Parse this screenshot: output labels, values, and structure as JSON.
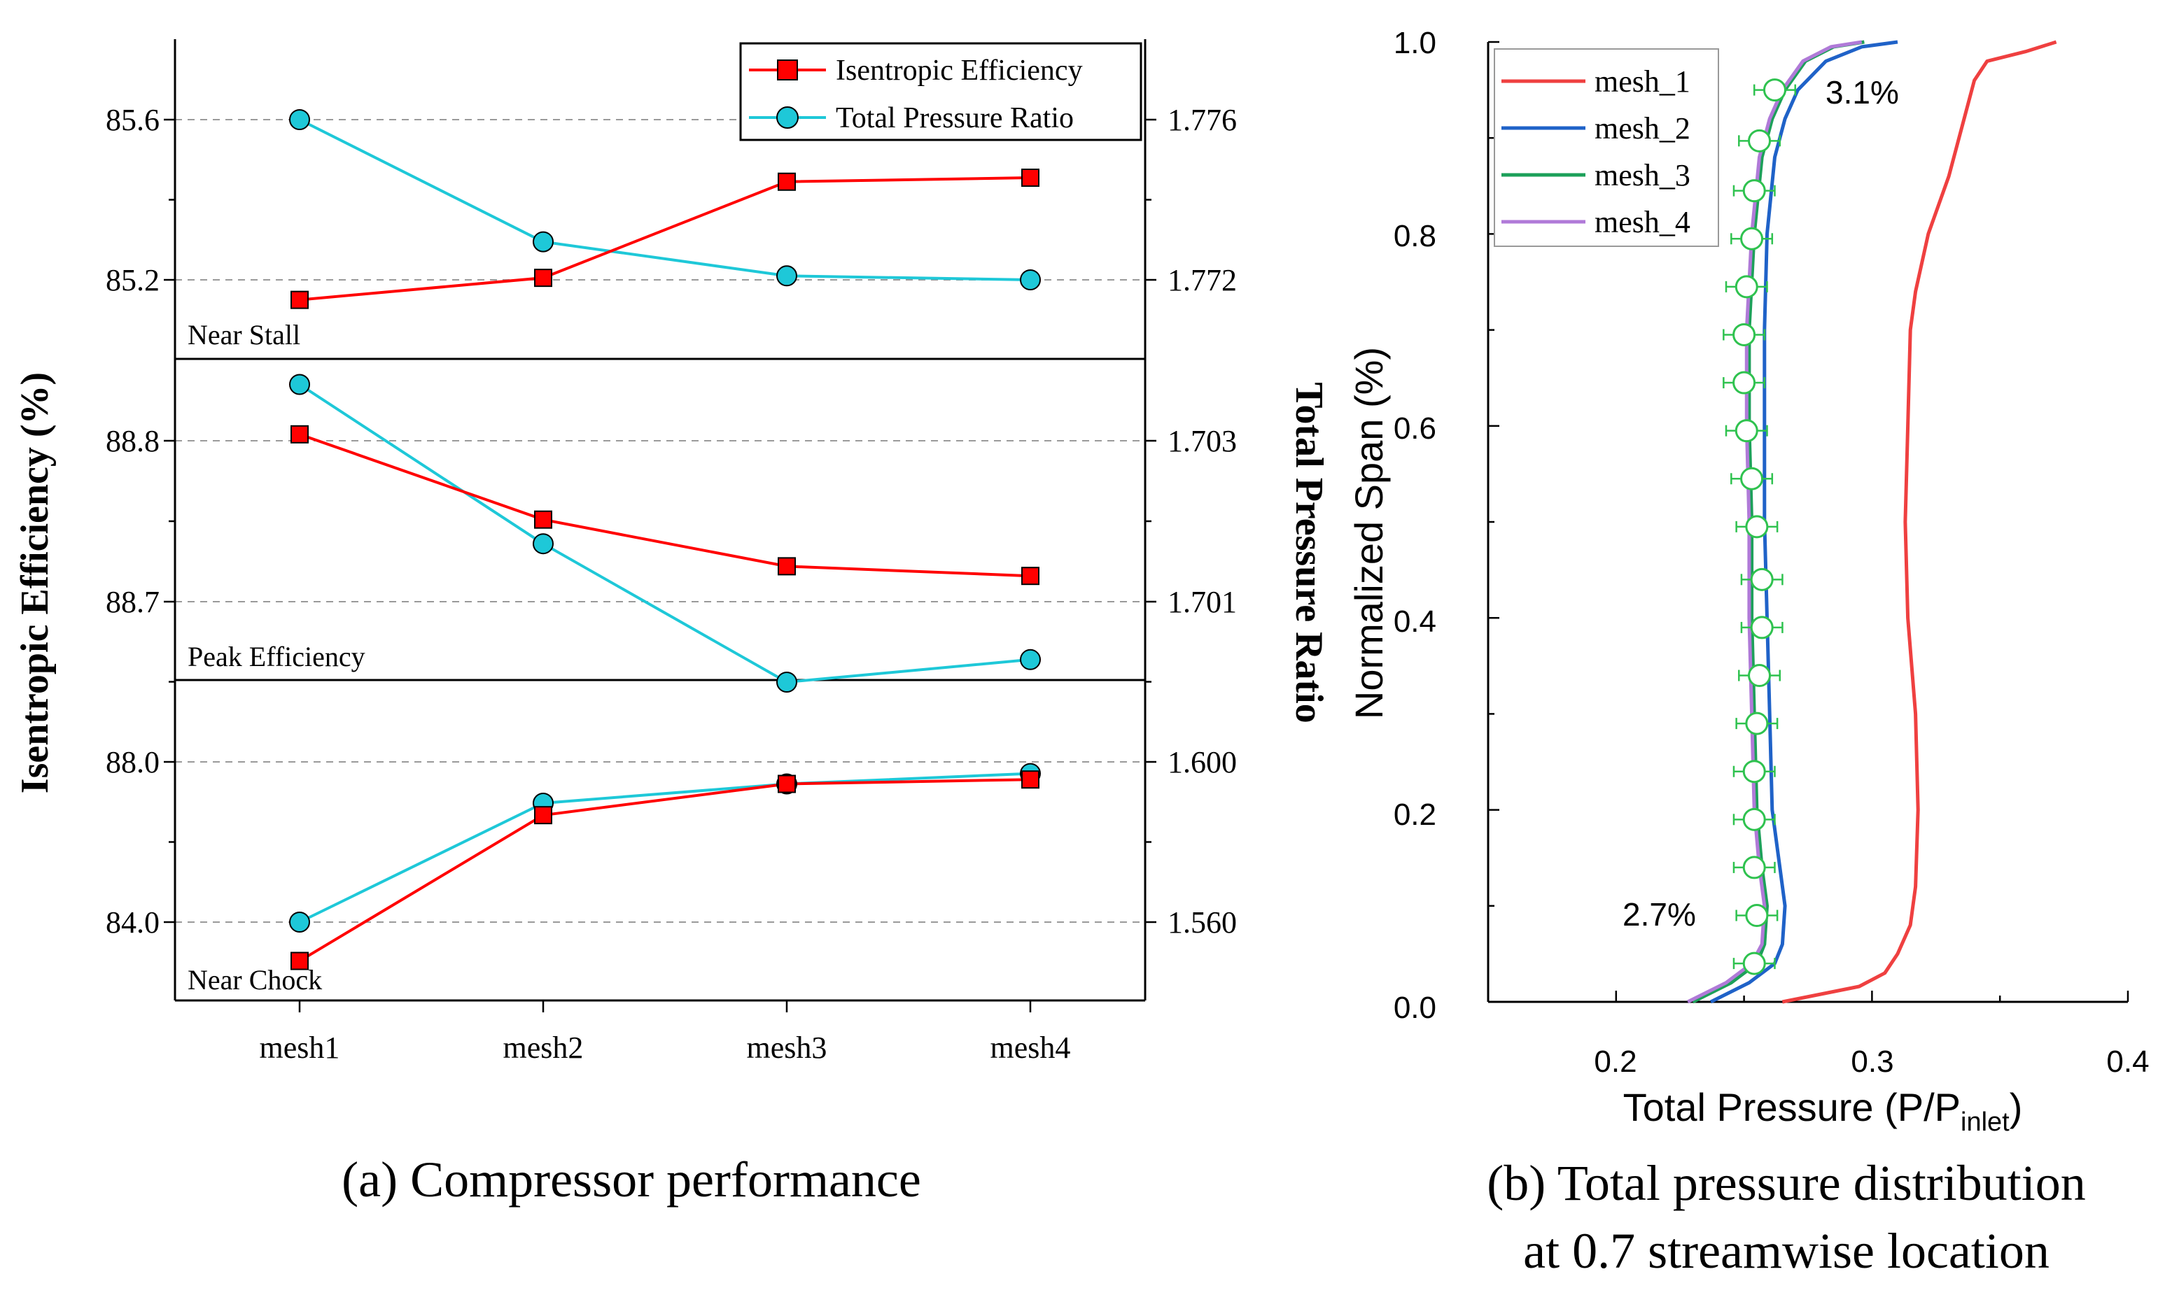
{
  "colors": {
    "efficiency": "#ff0000",
    "pressure_ratio": "#1ec8d8",
    "mesh_1": "#ef4040",
    "mesh_2": "#1f62c8",
    "mesh_3": "#1da05a",
    "mesh_4": "#b07ad8",
    "marker_green": "#2fc24f",
    "grid": "#9a9a9a"
  },
  "chart_data": [
    {
      "type": "line",
      "caption": "(a) Compressor performance",
      "categories": [
        "mesh1",
        "mesh2",
        "mesh3",
        "mesh4"
      ],
      "ylabel_left": "Isentropic Efficiency (%)",
      "ylabel_right": "Total Pressure Ratio",
      "legend": {
        "position": "top-right",
        "entries": [
          "Isentropic Efficiency",
          "Total Pressure Ratio"
        ]
      },
      "panels": [
        {
          "label": "Near Stall",
          "left_ticks": [
            "85.6",
            "85.2"
          ],
          "right_ticks": [
            "1.776",
            "1.772"
          ],
          "series": [
            {
              "name": "Isentropic Efficiency",
              "values": [
                85.15,
                85.205,
                85.445,
                85.455
              ]
            },
            {
              "name": "Total Pressure Ratio",
              "values": [
                85.6,
                85.295,
                85.21,
                85.2
              ]
            }
          ]
        },
        {
          "label": "Peak Efficiency",
          "left_ticks": [
            "88.8",
            "88.7"
          ],
          "right_ticks": [
            "1.703",
            "1.701"
          ],
          "series": [
            {
              "name": "Isentropic Efficiency",
              "values": [
                88.804,
                88.751,
                88.722,
                88.716
              ]
            },
            {
              "name": "Total Pressure Ratio",
              "values": [
                88.835,
                88.736,
                88.65,
                88.664
              ]
            }
          ]
        },
        {
          "label": "Near Chock",
          "left_ticks": [
            "88.0",
            "84.0"
          ],
          "right_ticks": [
            "1.600",
            "1.560"
          ],
          "series": [
            {
              "name": "Isentropic Efficiency",
              "values": [
                83.03,
                86.67,
                87.45,
                87.56
              ]
            },
            {
              "name": "Total Pressure Ratio",
              "values": [
                84.0,
                86.97,
                87.45,
                87.71
              ]
            }
          ]
        }
      ]
    },
    {
      "type": "line",
      "caption_line1": "(b) Total pressure distribution",
      "caption_line2": "at 0.7 streamwise location",
      "xlabel_main": "Total Pressure (P/P",
      "xlabel_sub": "inlet",
      "xlabel_end": ")",
      "ylabel": "Normalized Span (%)",
      "xlim": [
        0.15,
        0.4
      ],
      "ylim": [
        0,
        1
      ],
      "x_ticks": [
        "0.2",
        "0.3",
        "0.4"
      ],
      "y_ticks": [
        "0.0",
        "0.2",
        "0.4",
        "0.6",
        "0.8",
        "1.0"
      ],
      "legend": {
        "position": "top-left",
        "entries": [
          "mesh_1",
          "mesh_2",
          "mesh_3",
          "mesh_4"
        ]
      },
      "annotations": [
        "3.1%",
        "2.7%"
      ],
      "series": [
        {
          "name": "mesh_1",
          "points": [
            [
              0.265,
              0.0
            ],
            [
              0.28,
              0.008
            ],
            [
              0.295,
              0.016
            ],
            [
              0.305,
              0.03
            ],
            [
              0.31,
              0.05
            ],
            [
              0.315,
              0.08
            ],
            [
              0.317,
              0.12
            ],
            [
              0.318,
              0.2
            ],
            [
              0.317,
              0.3
            ],
            [
              0.314,
              0.4
            ],
            [
              0.313,
              0.5
            ],
            [
              0.314,
              0.6
            ],
            [
              0.315,
              0.7
            ],
            [
              0.317,
              0.74
            ],
            [
              0.322,
              0.8
            ],
            [
              0.33,
              0.86
            ],
            [
              0.336,
              0.92
            ],
            [
              0.34,
              0.96
            ],
            [
              0.345,
              0.98
            ],
            [
              0.36,
              0.99
            ],
            [
              0.372,
              1.0
            ]
          ]
        },
        {
          "name": "mesh_2",
          "points": [
            [
              0.237,
              0.0
            ],
            [
              0.252,
              0.02
            ],
            [
              0.262,
              0.04
            ],
            [
              0.265,
              0.06
            ],
            [
              0.266,
              0.1
            ],
            [
              0.264,
              0.14
            ],
            [
              0.261,
              0.2
            ],
            [
              0.26,
              0.3
            ],
            [
              0.259,
              0.4
            ],
            [
              0.258,
              0.5
            ],
            [
              0.258,
              0.6
            ],
            [
              0.258,
              0.7
            ],
            [
              0.259,
              0.8
            ],
            [
              0.262,
              0.88
            ],
            [
              0.266,
              0.92
            ],
            [
              0.271,
              0.95
            ],
            [
              0.282,
              0.98
            ],
            [
              0.296,
              0.995
            ],
            [
              0.31,
              1.0
            ]
          ]
        },
        {
          "name": "mesh_3",
          "points": [
            [
              0.23,
              0.0
            ],
            [
              0.245,
              0.02
            ],
            [
              0.255,
              0.04
            ],
            [
              0.258,
              0.06
            ],
            [
              0.259,
              0.1
            ],
            [
              0.257,
              0.14
            ],
            [
              0.255,
              0.2
            ],
            [
              0.254,
              0.3
            ],
            [
              0.253,
              0.4
            ],
            [
              0.253,
              0.5
            ],
            [
              0.252,
              0.6
            ],
            [
              0.252,
              0.7
            ],
            [
              0.254,
              0.8
            ],
            [
              0.257,
              0.88
            ],
            [
              0.261,
              0.92
            ],
            [
              0.266,
              0.95
            ],
            [
              0.274,
              0.98
            ],
            [
              0.285,
              0.995
            ],
            [
              0.297,
              1.0
            ]
          ]
        },
        {
          "name": "mesh_4",
          "points": [
            [
              0.228,
              0.0
            ],
            [
              0.243,
              0.02
            ],
            [
              0.253,
              0.04
            ],
            [
              0.257,
              0.06
            ],
            [
              0.258,
              0.1
            ],
            [
              0.256,
              0.14
            ],
            [
              0.254,
              0.2
            ],
            [
              0.253,
              0.3
            ],
            [
              0.252,
              0.4
            ],
            [
              0.252,
              0.5
            ],
            [
              0.251,
              0.6
            ],
            [
              0.251,
              0.7
            ],
            [
              0.253,
              0.8
            ],
            [
              0.256,
              0.88
            ],
            [
              0.26,
              0.92
            ],
            [
              0.265,
              0.95
            ],
            [
              0.273,
              0.98
            ],
            [
              0.284,
              0.995
            ],
            [
              0.296,
              1.0
            ]
          ]
        },
        {
          "name": "mesh_3 markers",
          "error_bar": 0.008,
          "points": [
            [
              0.254,
              0.04
            ],
            [
              0.255,
              0.09
            ],
            [
              0.254,
              0.14
            ],
            [
              0.254,
              0.19
            ],
            [
              0.254,
              0.24
            ],
            [
              0.255,
              0.29
            ],
            [
              0.256,
              0.34
            ],
            [
              0.257,
              0.39
            ],
            [
              0.257,
              0.44
            ],
            [
              0.255,
              0.495
            ],
            [
              0.253,
              0.545
            ],
            [
              0.251,
              0.595
            ],
            [
              0.25,
              0.645
            ],
            [
              0.25,
              0.695
            ],
            [
              0.251,
              0.745
            ],
            [
              0.253,
              0.795
            ],
            [
              0.254,
              0.845
            ],
            [
              0.256,
              0.897
            ],
            [
              0.262,
              0.95
            ]
          ]
        }
      ]
    }
  ]
}
